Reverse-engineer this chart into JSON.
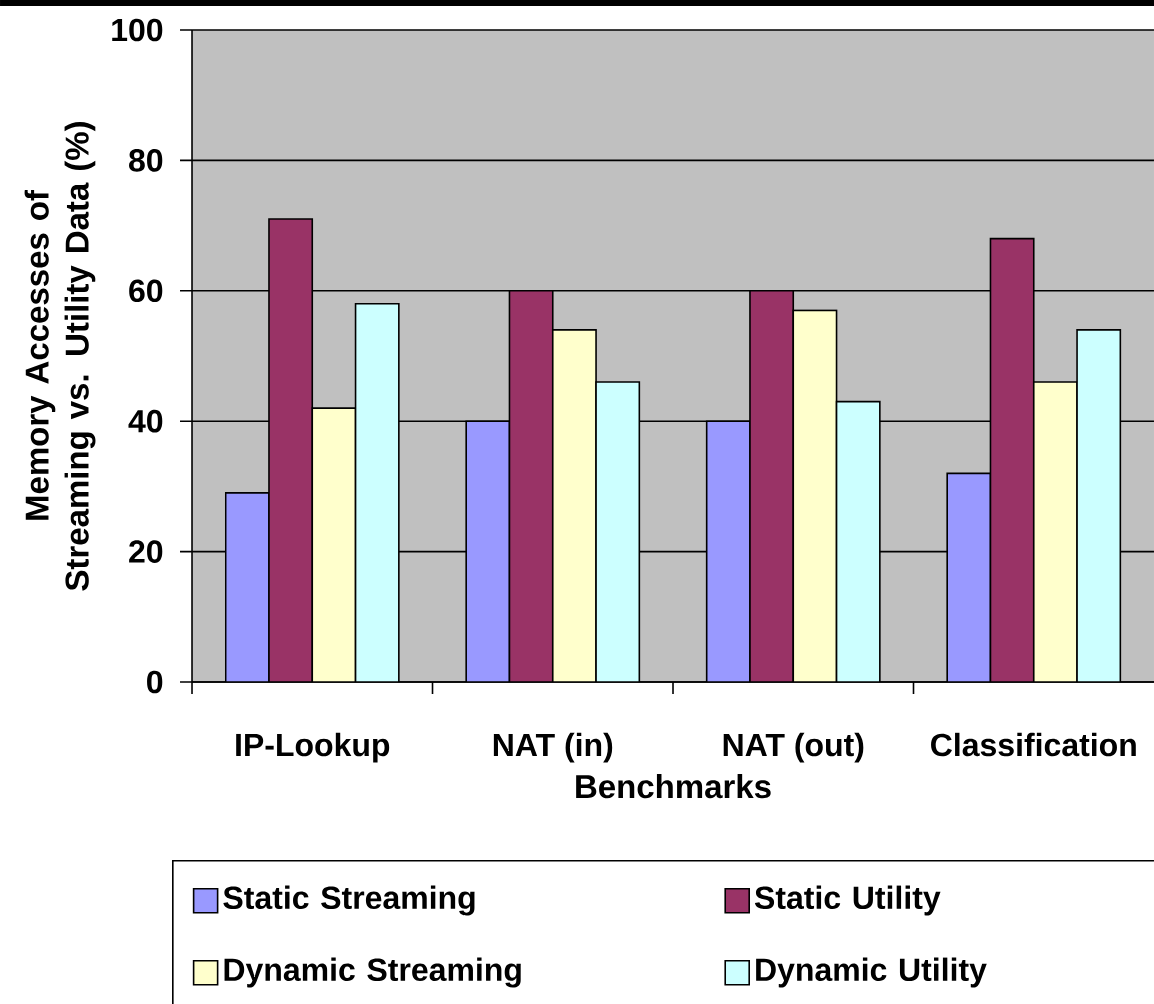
{
  "chart_data": {
    "type": "bar",
    "xlabel": "Benchmarks",
    "ylabel": "Memory Accesses of Streaming vs. Utility Data (%)",
    "categories": [
      "IP-Lookup",
      "NAT (in)",
      "NAT (out)",
      "Classification"
    ],
    "series": [
      {
        "name": "Static Streaming",
        "color": "#9999ff",
        "values": [
          29,
          40,
          40,
          32
        ]
      },
      {
        "name": "Static Utility",
        "color": "#993366",
        "values": [
          71,
          60,
          60,
          68
        ]
      },
      {
        "name": "Dynamic Streaming",
        "color": "#ffffcc",
        "values": [
          42,
          54,
          57,
          46
        ]
      },
      {
        "name": "Dynamic Utility",
        "color": "#ccffff",
        "values": [
          58,
          46,
          43,
          54
        ]
      }
    ],
    "ylim": [
      0,
      100
    ],
    "yticks": [
      0,
      20,
      40,
      60,
      80,
      100
    ],
    "grid": "y",
    "legend": "bottom"
  }
}
